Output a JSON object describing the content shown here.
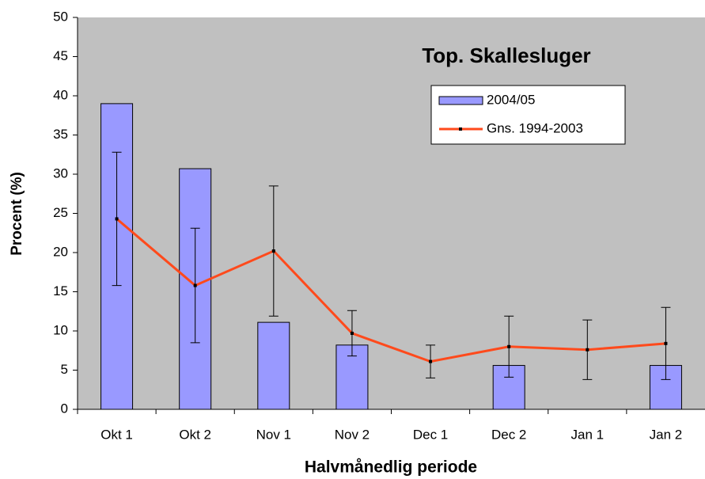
{
  "chart_data": {
    "type": "bar-line",
    "title": "Top. Skallesluger",
    "x_label": "Halvmånedlig periode",
    "y_label": "Procent (%)",
    "categories": [
      "Okt 1",
      "Okt 2",
      "Nov 1",
      "Nov 2",
      "Dec 1",
      "Dec 2",
      "Jan 1",
      "Jan 2"
    ],
    "series": [
      {
        "name": "2004/05",
        "kind": "bar",
        "color": "#9999ff",
        "values": [
          39,
          30.7,
          11.1,
          8.2,
          null,
          5.6,
          null,
          5.6
        ]
      },
      {
        "name": "Gns. 1994-2003",
        "kind": "line",
        "color": "#ff4a1c",
        "values": [
          24.3,
          15.8,
          20.2,
          9.7,
          6.1,
          8.0,
          7.6,
          8.4
        ],
        "errors": [
          8.5,
          7.3,
          8.3,
          2.9,
          2.1,
          3.9,
          3.8,
          4.6
        ]
      }
    ],
    "ylim": [
      0,
      50
    ],
    "yticks": [
      0,
      5,
      10,
      15,
      20,
      25,
      30,
      35,
      40,
      45,
      50
    ],
    "background": "#c0c0c0"
  }
}
